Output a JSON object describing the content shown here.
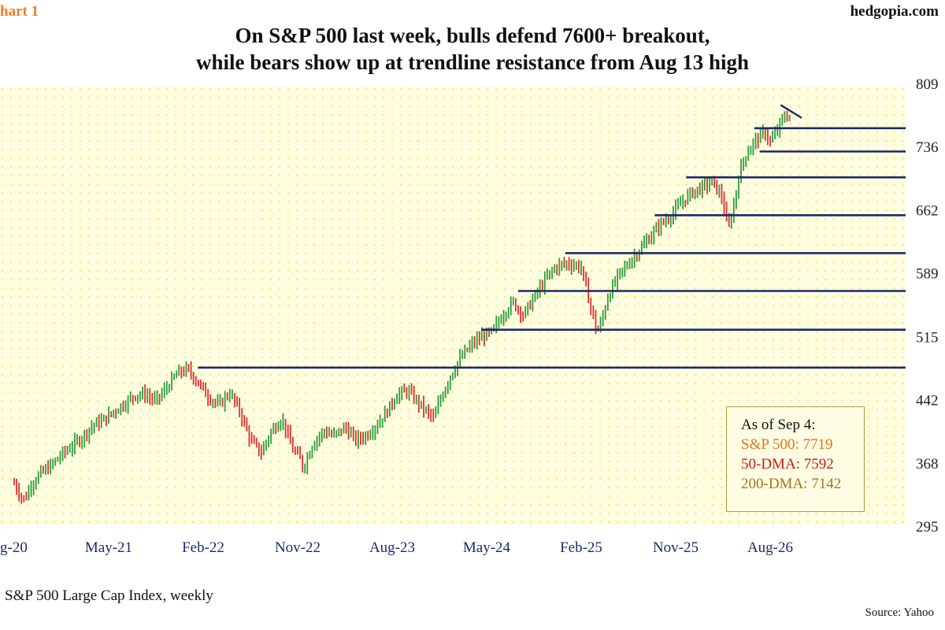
{
  "header": {
    "chart_label": "hart 1",
    "brand": "hedgopia.com",
    "title_line1": "On S&P 500 last week, bulls defend 7600+ breakout,",
    "title_line2": "while bears show up at trendline resistance from Aug 13 high"
  },
  "legend": {
    "heading": "As of Sep 4:",
    "sp500": "S&P 500: 7719",
    "dma50": "50-DMA: 7592",
    "dma200": "200-DMA: 7142"
  },
  "footer": {
    "subtitle": "S&P 500 Large Cap Index, weekly",
    "source": "Source: Yahoo"
  },
  "colors": {
    "up_bar": "#2e9e3e",
    "down_bar": "#e03030",
    "line": "#1b2a6b",
    "plot_bg": "#fffde0",
    "dot": "#f3e66a",
    "legend_sp500": "#e0731b",
    "legend_50dma": "#cc1a1a",
    "legend_200dma": "#a8741a"
  },
  "chart_data": {
    "type": "bar",
    "style": "weekly-ohlc",
    "title": "On S&P 500 last week, bulls defend 7600+ breakout, while bears show up at trendline resistance from Aug 13 high",
    "xlabel": "",
    "ylabel": "",
    "x_ticks": [
      "g-20",
      "May-21",
      "Feb-22",
      "Nov-22",
      "Aug-23",
      "May-24",
      "Feb-25",
      "Nov-25",
      "Aug-26"
    ],
    "x_tick_months": [
      0,
      9,
      18,
      27,
      36,
      45,
      54,
      63,
      72
    ],
    "y_ticks": [
      295,
      368,
      442,
      515,
      589,
      662,
      736,
      809
    ],
    "ylim": [
      295,
      809
    ],
    "xlim_months": [
      0,
      74.5
    ],
    "grid": "dotted background",
    "legend_position": "bottom-right",
    "series": [
      {
        "anchors": [
          [
            0.0,
            345
          ],
          [
            0.6,
            330
          ],
          [
            1.0,
            326
          ],
          [
            1.6,
            343
          ],
          [
            2.5,
            356
          ],
          [
            3.5,
            365
          ],
          [
            4.5,
            378
          ],
          [
            5.5,
            388
          ],
          [
            6.5,
            398
          ],
          [
            7.5,
            412
          ],
          [
            8.5,
            418
          ],
          [
            9.5,
            428
          ],
          [
            10.5,
            437
          ],
          [
            11.5,
            447
          ],
          [
            12.5,
            448
          ],
          [
            13.5,
            440
          ],
          [
            14.5,
            455
          ],
          [
            15.5,
            472
          ],
          [
            16.5,
            477
          ],
          [
            17.5,
            462
          ],
          [
            18.5,
            445
          ],
          [
            19.5,
            435
          ],
          [
            20.5,
            450
          ],
          [
            21.5,
            428
          ],
          [
            22.5,
            395
          ],
          [
            23.5,
            380
          ],
          [
            24.5,
            405
          ],
          [
            25.5,
            420
          ],
          [
            26.5,
            385
          ],
          [
            27.3,
            372
          ],
          [
            27.5,
            362
          ],
          [
            28.5,
            392
          ],
          [
            29.5,
            405
          ],
          [
            30.5,
            400
          ],
          [
            31.5,
            410
          ],
          [
            32.5,
            395
          ],
          [
            33.5,
            400
          ],
          [
            34.5,
            412
          ],
          [
            35.5,
            428
          ],
          [
            36.5,
            448
          ],
          [
            37.5,
            452
          ],
          [
            38.5,
            438
          ],
          [
            39.5,
            425
          ],
          [
            40.0,
            420
          ],
          [
            40.5,
            440
          ],
          [
            41.5,
            468
          ],
          [
            42.5,
            490
          ],
          [
            43.5,
            505
          ],
          [
            44.5,
            515
          ],
          [
            45.5,
            520
          ],
          [
            46.5,
            540
          ],
          [
            47.5,
            555
          ],
          [
            48.5,
            540
          ],
          [
            49.5,
            560
          ],
          [
            50.5,
            580
          ],
          [
            51.5,
            595
          ],
          [
            52.5,
            600
          ],
          [
            53.5,
            598
          ],
          [
            54.0,
            595
          ],
          [
            54.5,
            570
          ],
          [
            55.0,
            545
          ],
          [
            55.5,
            520
          ],
          [
            56.0,
            535
          ],
          [
            56.5,
            560
          ],
          [
            57.5,
            585
          ],
          [
            58.5,
            600
          ],
          [
            59.5,
            615
          ],
          [
            60.5,
            630
          ],
          [
            61.5,
            645
          ],
          [
            62.5,
            655
          ],
          [
            63.5,
            670
          ],
          [
            64.5,
            682
          ],
          [
            65.5,
            688
          ],
          [
            66.5,
            695
          ],
          [
            67.0,
            685
          ],
          [
            67.5,
            675
          ],
          [
            67.8,
            650
          ],
          [
            68.0,
            640
          ],
          [
            68.5,
            665
          ],
          [
            69.0,
            700
          ],
          [
            69.5,
            722
          ],
          [
            70.5,
            742
          ],
          [
            71.5,
            752
          ],
          [
            72.0,
            742
          ],
          [
            72.5,
            750
          ],
          [
            73.0,
            764
          ],
          [
            73.5,
            772
          ],
          [
            74.0,
            770
          ]
        ]
      }
    ],
    "horizontal_levels": [
      {
        "from_month": 17.5,
        "value": 479
      },
      {
        "from_month": 44.5,
        "value": 523
      },
      {
        "from_month": 48.0,
        "value": 568
      },
      {
        "from_month": 52.5,
        "value": 612
      },
      {
        "from_month": 61.0,
        "value": 656
      },
      {
        "from_month": 64.0,
        "value": 700
      },
      {
        "from_month": 71.0,
        "value": 730
      },
      {
        "from_month": 70.5,
        "value": 757
      }
    ],
    "trendlines": [
      {
        "from_month": 73.0,
        "from_value": 784,
        "to_month": 75.0,
        "to_value": 769
      }
    ]
  }
}
